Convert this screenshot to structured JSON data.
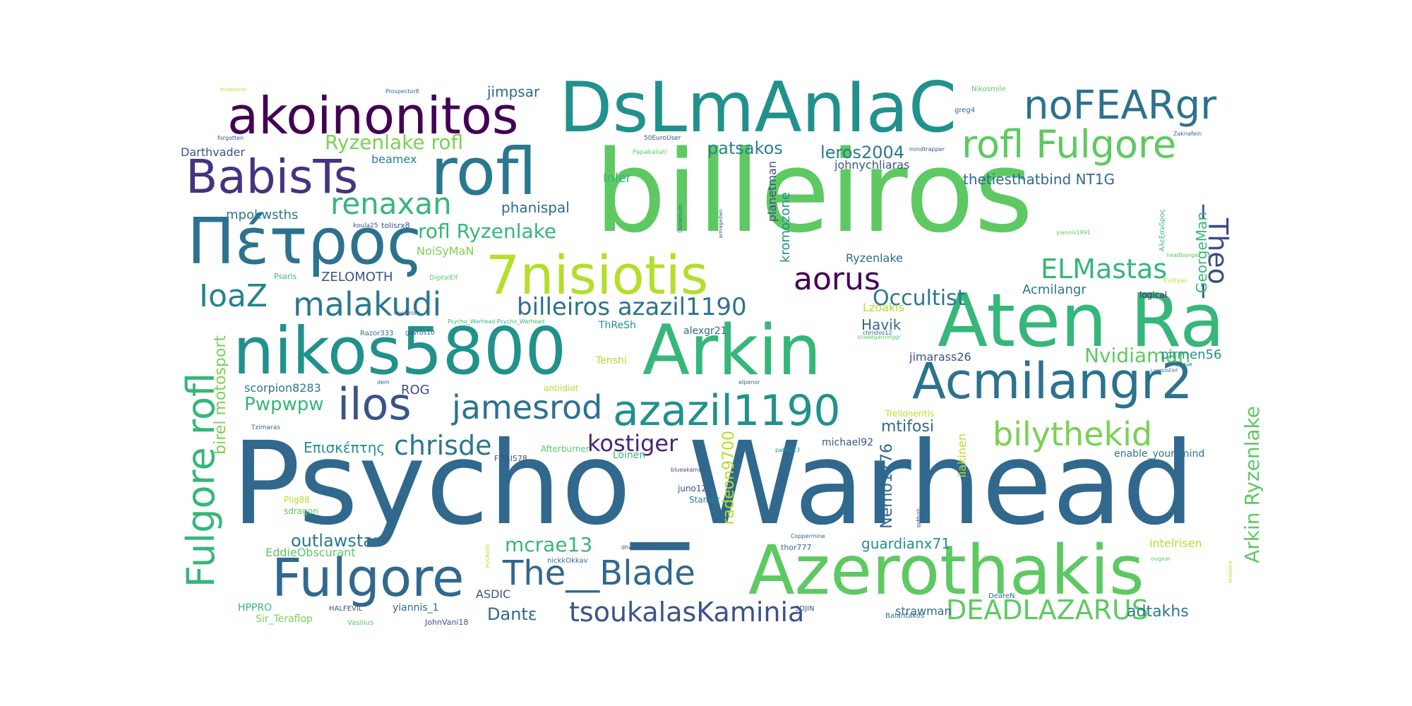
{
  "cloud": {
    "words": [
      {
        "text": "Psycho_Warhead",
        "color": "#31688e"
      },
      {
        "text": "billeiros",
        "color": "#5ec962"
      },
      {
        "text": "Arkin",
        "color": "#35b779"
      },
      {
        "text": "DsLmAnIaC",
        "color": "#21918c"
      },
      {
        "text": "Aten Ra",
        "color": "#35b779"
      },
      {
        "text": "Azerothakis",
        "color": "#5ec962"
      },
      {
        "text": "nikos5800",
        "color": "#21918c"
      },
      {
        "text": "rofl",
        "color": "#2a788e"
      },
      {
        "text": "Πέτρος",
        "color": "#2c728e"
      },
      {
        "text": "akoinonitos",
        "color": "#440154"
      },
      {
        "text": "7nisiotis",
        "color": "#b5de2b"
      },
      {
        "text": "Fulgore",
        "color": "#31688e"
      },
      {
        "text": "Acmilangr2",
        "color": "#2c728e"
      },
      {
        "text": "BabisTs",
        "color": "#46327e"
      },
      {
        "text": "azazil1190",
        "color": "#21918c"
      },
      {
        "text": "ilos",
        "color": "#3b528b"
      },
      {
        "text": "noFEARgr",
        "color": "#2c728e"
      },
      {
        "text": "rofl Fulgore",
        "color": "#5ec962"
      },
      {
        "text": "The__Blade",
        "color": "#31688e"
      },
      {
        "text": "Fulgore rofl",
        "color": "#35b779"
      },
      {
        "text": "jamesrod",
        "color": "#2c728e"
      },
      {
        "text": "malakudi",
        "color": "#2a788e"
      },
      {
        "text": "bilythekid",
        "color": "#7ad151"
      },
      {
        "text": "renaxan",
        "color": "#35b779"
      },
      {
        "text": "aorus",
        "color": "#440154"
      },
      {
        "text": "IoaZ",
        "color": "#26828e"
      },
      {
        "text": "billeiros azazil1190",
        "color": "#2c728e"
      },
      {
        "text": "ELMastas",
        "color": "#35b779"
      },
      {
        "text": "_Theo_",
        "color": "#3e4a89"
      },
      {
        "text": "tsoukalasKaminia",
        "color": "#3b528b"
      },
      {
        "text": "DEADLAZARUS",
        "color": "#5ec962"
      },
      {
        "text": "chrisde",
        "color": "#2a788e"
      },
      {
        "text": "kostiger",
        "color": "#482475"
      },
      {
        "text": "Occultist",
        "color": "#2a788e"
      },
      {
        "text": "Ryzenlake rofl",
        "color": "#7ad151"
      },
      {
        "text": "rofl Ryzenlake",
        "color": "#35b779"
      },
      {
        "text": "Nvidiaman",
        "color": "#5ec962"
      },
      {
        "text": "Arkin Ryzenlake",
        "color": "#5ec962"
      },
      {
        "text": "mcrae13",
        "color": "#35b779"
      },
      {
        "text": "Pwpwpw",
        "color": "#35b779"
      },
      {
        "text": "outlawstar",
        "color": "#2a788e"
      },
      {
        "text": "patsakos",
        "color": "#26828e"
      },
      {
        "text": "Dantε",
        "color": "#31688e"
      },
      {
        "text": "birel motosport",
        "color": "#7ad151"
      },
      {
        "text": "radeon9700",
        "color": "#b5de2b"
      },
      {
        "text": "Επισκέπτης",
        "color": "#21918c"
      },
      {
        "text": "leros2004",
        "color": "#2a788e"
      },
      {
        "text": "jimpsar",
        "color": "#31688e"
      },
      {
        "text": "Havik",
        "color": "#31688e"
      },
      {
        "text": "mtifosi",
        "color": "#31688e"
      },
      {
        "text": "Nemo1776",
        "color": "#31688e"
      },
      {
        "text": "guardianx71",
        "color": "#21918c"
      },
      {
        "text": "phanispal",
        "color": "#31688e"
      },
      {
        "text": "kromozone",
        "color": "#21918c"
      },
      {
        "text": "adtakhs",
        "color": "#2a788e"
      },
      {
        "text": "Acmilangr",
        "color": "#2a788e"
      },
      {
        "text": "GeorgeMan",
        "color": "#35b779"
      },
      {
        "text": "mpokwsths",
        "color": "#2a788e"
      },
      {
        "text": "thetiesthatbind NT1G",
        "color": "#31688e"
      },
      {
        "text": "ROG",
        "color": "#3e4a89"
      },
      {
        "text": "pirmen56",
        "color": "#21918c"
      },
      {
        "text": "jimarass26",
        "color": "#3b528b"
      },
      {
        "text": "ZELOMOTH",
        "color": "#3b528b"
      },
      {
        "text": "scorpion8283",
        "color": "#2a788e"
      },
      {
        "text": "EddieObscurant",
        "color": "#5ec962"
      },
      {
        "text": "johnychliaras",
        "color": "#3b528b"
      },
      {
        "text": "beamex",
        "color": "#26828e"
      },
      {
        "text": "Inler",
        "color": "#35b779"
      },
      {
        "text": "NoiSyMaN",
        "color": "#7ad151"
      },
      {
        "text": "Darthvader",
        "color": "#3b528b"
      },
      {
        "text": "planetman",
        "color": "#3e4a89"
      },
      {
        "text": "Ryzenlake",
        "color": "#31688e"
      },
      {
        "text": "intelrisen",
        "color": "#b5de2b"
      },
      {
        "text": "enable_your_mind",
        "color": "#2a788e"
      },
      {
        "text": "Lzoakis",
        "color": "#b5de2b"
      },
      {
        "text": "alexgr21",
        "color": "#31688e"
      },
      {
        "text": "Loinen",
        "color": "#35b779"
      },
      {
        "text": "michael92",
        "color": "#3b528b"
      },
      {
        "text": "iiakinen",
        "color": "#b5de2b"
      },
      {
        "text": "ASDIC",
        "color": "#3b528b"
      },
      {
        "text": "yiannis_1",
        "color": "#31688e"
      },
      {
        "text": "HPPRO",
        "color": "#35b779"
      },
      {
        "text": "Sir_Teraflop",
        "color": "#7ad151"
      },
      {
        "text": "strawman",
        "color": "#31688e"
      },
      {
        "text": "Trelloneritis",
        "color": "#b5de2b"
      },
      {
        "text": "Tenshi",
        "color": "#b5de2b"
      },
      {
        "text": "ThReSh",
        "color": "#21918c"
      },
      {
        "text": "juno12",
        "color": "#3b528b"
      },
      {
        "text": "Stamer",
        "color": "#26828e"
      },
      {
        "text": "sdragon",
        "color": "#5ec962"
      },
      {
        "text": "Plig88",
        "color": "#b5de2b"
      },
      {
        "text": "antiidiot",
        "color": "#b5de2b"
      },
      {
        "text": "Afterburner",
        "color": "#5ec962"
      },
      {
        "text": "FORIS78",
        "color": "#3b528b"
      },
      {
        "text": "thor777",
        "color": "#31688e"
      },
      {
        "text": "JohnVani18",
        "color": "#3b528b"
      },
      {
        "text": "nickkOkkav",
        "color": "#31688e"
      },
      {
        "text": "HALFEVIL",
        "color": "#3b528b"
      },
      {
        "text": "Vasilius",
        "color": "#5ec962"
      },
      {
        "text": "logical",
        "color": "#482475"
      },
      {
        "text": "tolisrx8",
        "color": "#3b528b"
      },
      {
        "text": "koula25",
        "color": "#3b528b"
      },
      {
        "text": "Razor333",
        "color": "#31688e"
      },
      {
        "text": "gavros10",
        "color": "#3b528b"
      },
      {
        "text": "Psaris",
        "color": "#35b779"
      },
      {
        "text": "DigitalElf",
        "color": "#5ec962"
      },
      {
        "text": "nosstrom",
        "color": "#3b528b"
      },
      {
        "text": "Psycho_Warhead Psycho_Warhead",
        "color": "#35b779"
      },
      {
        "text": "christos12",
        "color": "#3b528b"
      },
      {
        "text": "snakegaminggr",
        "color": "#5ec962"
      },
      {
        "text": "elpenor",
        "color": "#31688e"
      },
      {
        "text": "dem",
        "color": "#31688e"
      },
      {
        "text": "Tzimaras",
        "color": "#31688e"
      },
      {
        "text": "pabou13",
        "color": "#21918c"
      },
      {
        "text": "blueakamah",
        "color": "#3b528b"
      },
      {
        "text": "Coppermine",
        "color": "#31688e"
      },
      {
        "text": "dhwhtries22",
        "color": "#3b528b"
      },
      {
        "text": "ougxar",
        "color": "#5ec962"
      },
      {
        "text": "DeareN",
        "color": "#31688e"
      },
      {
        "text": "Balantakos",
        "color": "#2a788e"
      },
      {
        "text": "3DJIN",
        "color": "#3b528b"
      },
      {
        "text": "50EuroUser",
        "color": "#3b528b"
      },
      {
        "text": "Papakaliati",
        "color": "#5ec962"
      },
      {
        "text": "mindtrapper",
        "color": "#3b528b"
      },
      {
        "text": "Zaknafein",
        "color": "#31688e"
      },
      {
        "text": "Nikosmile",
        "color": "#5ec962"
      },
      {
        "text": "greg4",
        "color": "#31688e"
      },
      {
        "text": "forgotten",
        "color": "#3b528b"
      },
      {
        "text": "Prospector8",
        "color": "#31688e"
      },
      {
        "text": "mutesluck",
        "color": "#b5de2b"
      },
      {
        "text": "yiannis1991",
        "color": "#5ec962"
      },
      {
        "text": "headbanger",
        "color": "#5ec962"
      },
      {
        "text": "EvilEyes",
        "color": "#b5de2b"
      },
      {
        "text": "LambisElef",
        "color": "#2a788e"
      },
      {
        "text": "GoMaR",
        "color": "#2a788e"
      },
      {
        "text": "Ouranium",
        "color": "#31688e"
      },
      {
        "text": "armagedwn",
        "color": "#3b528b"
      },
      {
        "text": "Αλεξανδρος",
        "color": "#35b779"
      },
      {
        "text": "gpMush",
        "color": "#3b528b"
      },
      {
        "text": "ShooterX",
        "color": "#b5de2b"
      },
      {
        "text": "POCRATIS",
        "color": "#b5de2b"
      }
    ]
  }
}
